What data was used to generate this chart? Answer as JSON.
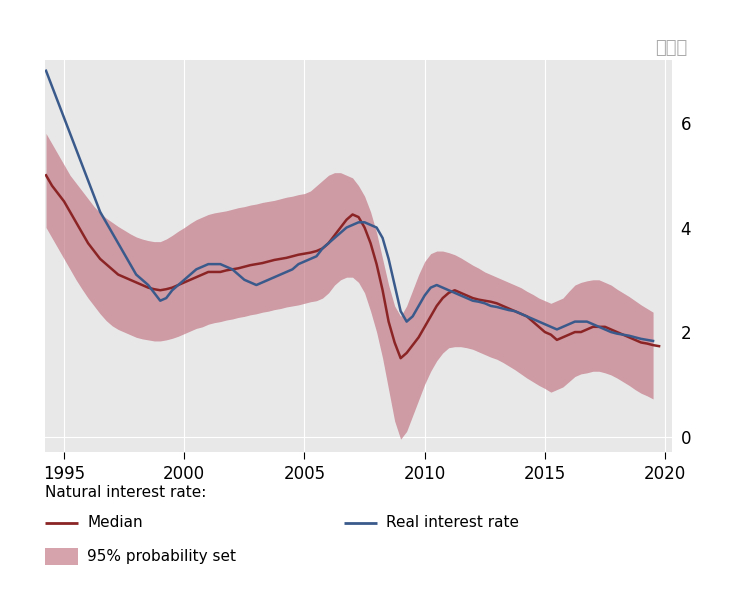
{
  "title_right": "百分比",
  "background_color": "#ffffff",
  "plot_bg_color": "#e8e8e8",
  "xlim": [
    1994.2,
    2020.3
  ],
  "ylim": [
    -0.3,
    7.2
  ],
  "yticks": [
    0,
    2,
    4,
    6
  ],
  "xticks": [
    1995,
    2000,
    2005,
    2010,
    2015,
    2020
  ],
  "median_color": "#8B2525",
  "real_color": "#3a5a8c",
  "band_color": "#c07080",
  "band_alpha": 0.65,
  "median_data": {
    "x": [
      1994.25,
      1994.5,
      1995.0,
      1995.25,
      1995.5,
      1995.75,
      1996.0,
      1996.25,
      1996.5,
      1996.75,
      1997.0,
      1997.25,
      1997.5,
      1997.75,
      1998.0,
      1998.25,
      1998.5,
      1998.75,
      1999.0,
      1999.25,
      1999.5,
      1999.75,
      2000.0,
      2000.25,
      2000.5,
      2000.75,
      2001.0,
      2001.25,
      2001.5,
      2001.75,
      2002.0,
      2002.25,
      2002.5,
      2002.75,
      2003.0,
      2003.25,
      2003.5,
      2003.75,
      2004.0,
      2004.25,
      2004.5,
      2004.75,
      2005.0,
      2005.25,
      2005.5,
      2005.75,
      2006.0,
      2006.25,
      2006.5,
      2006.75,
      2007.0,
      2007.25,
      2007.5,
      2007.75,
      2008.0,
      2008.25,
      2008.5,
      2008.75,
      2009.0,
      2009.25,
      2009.5,
      2009.75,
      2010.0,
      2010.25,
      2010.5,
      2010.75,
      2011.0,
      2011.25,
      2011.5,
      2011.75,
      2012.0,
      2012.25,
      2012.5,
      2012.75,
      2013.0,
      2013.25,
      2013.5,
      2013.75,
      2014.0,
      2014.25,
      2014.5,
      2014.75,
      2015.0,
      2015.25,
      2015.5,
      2015.75,
      2016.0,
      2016.25,
      2016.5,
      2016.75,
      2017.0,
      2017.25,
      2017.5,
      2017.75,
      2018.0,
      2018.25,
      2018.5,
      2018.75,
      2019.0,
      2019.25,
      2019.5,
      2019.75
    ],
    "y": [
      5.0,
      4.8,
      4.5,
      4.3,
      4.1,
      3.9,
      3.7,
      3.55,
      3.4,
      3.3,
      3.2,
      3.1,
      3.05,
      3.0,
      2.95,
      2.9,
      2.85,
      2.82,
      2.8,
      2.82,
      2.85,
      2.9,
      2.95,
      3.0,
      3.05,
      3.1,
      3.15,
      3.15,
      3.15,
      3.18,
      3.2,
      3.22,
      3.25,
      3.28,
      3.3,
      3.32,
      3.35,
      3.38,
      3.4,
      3.42,
      3.45,
      3.48,
      3.5,
      3.52,
      3.55,
      3.6,
      3.7,
      3.85,
      4.0,
      4.15,
      4.25,
      4.2,
      4.0,
      3.7,
      3.3,
      2.8,
      2.2,
      1.8,
      1.5,
      1.6,
      1.75,
      1.9,
      2.1,
      2.3,
      2.5,
      2.65,
      2.75,
      2.8,
      2.75,
      2.7,
      2.65,
      2.62,
      2.6,
      2.58,
      2.55,
      2.5,
      2.45,
      2.4,
      2.35,
      2.3,
      2.2,
      2.1,
      2.0,
      1.95,
      1.85,
      1.9,
      1.95,
      2.0,
      2.0,
      2.05,
      2.1,
      2.1,
      2.1,
      2.05,
      2.0,
      1.95,
      1.9,
      1.85,
      1.8,
      1.78,
      1.75,
      1.73
    ]
  },
  "real_data": {
    "x": [
      1994.25,
      1994.5,
      1994.75,
      1995.0,
      1995.25,
      1995.5,
      1995.75,
      1996.0,
      1996.25,
      1996.5,
      1996.75,
      1997.0,
      1997.25,
      1997.5,
      1997.75,
      1998.0,
      1998.25,
      1998.5,
      1998.75,
      1999.0,
      1999.25,
      1999.5,
      1999.75,
      2000.0,
      2000.25,
      2000.5,
      2000.75,
      2001.0,
      2001.25,
      2001.5,
      2001.75,
      2002.0,
      2002.25,
      2002.5,
      2002.75,
      2003.0,
      2003.25,
      2003.5,
      2003.75,
      2004.0,
      2004.25,
      2004.5,
      2004.75,
      2005.0,
      2005.25,
      2005.5,
      2005.75,
      2006.0,
      2006.25,
      2006.5,
      2006.75,
      2007.0,
      2007.25,
      2007.5,
      2007.75,
      2008.0,
      2008.25,
      2008.5,
      2008.75,
      2009.0,
      2009.25,
      2009.5,
      2009.75,
      2010.0,
      2010.25,
      2010.5,
      2010.75,
      2011.0,
      2011.25,
      2011.5,
      2011.75,
      2012.0,
      2012.25,
      2012.5,
      2012.75,
      2013.0,
      2013.25,
      2013.5,
      2013.75,
      2014.0,
      2014.25,
      2014.5,
      2014.75,
      2015.0,
      2015.25,
      2015.5,
      2015.75,
      2016.0,
      2016.25,
      2016.5,
      2016.75,
      2017.0,
      2017.25,
      2017.5,
      2017.75,
      2018.0,
      2018.25,
      2018.5,
      2018.75,
      2019.0,
      2019.25,
      2019.5
    ],
    "y": [
      7.0,
      6.7,
      6.4,
      6.1,
      5.8,
      5.5,
      5.2,
      4.9,
      4.6,
      4.3,
      4.1,
      3.9,
      3.7,
      3.5,
      3.3,
      3.1,
      3.0,
      2.9,
      2.75,
      2.6,
      2.65,
      2.8,
      2.9,
      3.0,
      3.1,
      3.2,
      3.25,
      3.3,
      3.3,
      3.3,
      3.25,
      3.2,
      3.1,
      3.0,
      2.95,
      2.9,
      2.95,
      3.0,
      3.05,
      3.1,
      3.15,
      3.2,
      3.3,
      3.35,
      3.4,
      3.45,
      3.6,
      3.7,
      3.8,
      3.9,
      4.0,
      4.05,
      4.1,
      4.1,
      4.05,
      4.0,
      3.8,
      3.4,
      2.9,
      2.4,
      2.2,
      2.3,
      2.5,
      2.7,
      2.85,
      2.9,
      2.85,
      2.8,
      2.75,
      2.7,
      2.65,
      2.6,
      2.58,
      2.55,
      2.5,
      2.48,
      2.45,
      2.42,
      2.4,
      2.35,
      2.3,
      2.25,
      2.2,
      2.15,
      2.1,
      2.05,
      2.1,
      2.15,
      2.2,
      2.2,
      2.2,
      2.15,
      2.1,
      2.05,
      2.0,
      1.97,
      1.95,
      1.93,
      1.9,
      1.87,
      1.85,
      1.83
    ]
  },
  "upper_band": {
    "x": [
      1994.25,
      1994.5,
      1994.75,
      1995.0,
      1995.25,
      1995.5,
      1995.75,
      1996.0,
      1996.25,
      1996.5,
      1996.75,
      1997.0,
      1997.25,
      1997.5,
      1997.75,
      1998.0,
      1998.25,
      1998.5,
      1998.75,
      1999.0,
      1999.25,
      1999.5,
      1999.75,
      2000.0,
      2000.25,
      2000.5,
      2000.75,
      2001.0,
      2001.25,
      2001.5,
      2001.75,
      2002.0,
      2002.25,
      2002.5,
      2002.75,
      2003.0,
      2003.25,
      2003.5,
      2003.75,
      2004.0,
      2004.25,
      2004.5,
      2004.75,
      2005.0,
      2005.25,
      2005.5,
      2005.75,
      2006.0,
      2006.25,
      2006.5,
      2006.75,
      2007.0,
      2007.25,
      2007.5,
      2007.75,
      2008.0,
      2008.25,
      2008.5,
      2008.75,
      2009.0,
      2009.25,
      2009.5,
      2009.75,
      2010.0,
      2010.25,
      2010.5,
      2010.75,
      2011.0,
      2011.25,
      2011.5,
      2011.75,
      2012.0,
      2012.25,
      2012.5,
      2012.75,
      2013.0,
      2013.25,
      2013.5,
      2013.75,
      2014.0,
      2014.25,
      2014.5,
      2014.75,
      2015.0,
      2015.25,
      2015.5,
      2015.75,
      2016.0,
      2016.25,
      2016.5,
      2016.75,
      2017.0,
      2017.25,
      2017.5,
      2017.75,
      2018.0,
      2018.25,
      2018.5,
      2018.75,
      2019.0,
      2019.25,
      2019.5
    ],
    "y": [
      5.8,
      5.6,
      5.4,
      5.2,
      5.0,
      4.85,
      4.7,
      4.55,
      4.4,
      4.28,
      4.18,
      4.1,
      4.02,
      3.95,
      3.88,
      3.82,
      3.78,
      3.75,
      3.73,
      3.73,
      3.78,
      3.85,
      3.93,
      4.0,
      4.08,
      4.15,
      4.2,
      4.25,
      4.28,
      4.3,
      4.32,
      4.35,
      4.38,
      4.4,
      4.43,
      4.45,
      4.48,
      4.5,
      4.52,
      4.55,
      4.58,
      4.6,
      4.63,
      4.65,
      4.7,
      4.8,
      4.9,
      5.0,
      5.05,
      5.05,
      5.0,
      4.95,
      4.8,
      4.6,
      4.3,
      3.9,
      3.4,
      2.9,
      2.5,
      2.3,
      2.5,
      2.8,
      3.1,
      3.35,
      3.5,
      3.55,
      3.55,
      3.52,
      3.48,
      3.42,
      3.35,
      3.28,
      3.22,
      3.15,
      3.1,
      3.05,
      3.0,
      2.95,
      2.9,
      2.85,
      2.78,
      2.72,
      2.65,
      2.6,
      2.55,
      2.6,
      2.65,
      2.78,
      2.9,
      2.95,
      2.98,
      3.0,
      3.0,
      2.95,
      2.9,
      2.82,
      2.75,
      2.68,
      2.6,
      2.52,
      2.45,
      2.38
    ]
  },
  "lower_band": {
    "x": [
      1994.25,
      1994.5,
      1994.75,
      1995.0,
      1995.25,
      1995.5,
      1995.75,
      1996.0,
      1996.25,
      1996.5,
      1996.75,
      1997.0,
      1997.25,
      1997.5,
      1997.75,
      1998.0,
      1998.25,
      1998.5,
      1998.75,
      1999.0,
      1999.25,
      1999.5,
      1999.75,
      2000.0,
      2000.25,
      2000.5,
      2000.75,
      2001.0,
      2001.25,
      2001.5,
      2001.75,
      2002.0,
      2002.25,
      2002.5,
      2002.75,
      2003.0,
      2003.25,
      2003.5,
      2003.75,
      2004.0,
      2004.25,
      2004.5,
      2004.75,
      2005.0,
      2005.25,
      2005.5,
      2005.75,
      2006.0,
      2006.25,
      2006.5,
      2006.75,
      2007.0,
      2007.25,
      2007.5,
      2007.75,
      2008.0,
      2008.25,
      2008.5,
      2008.75,
      2009.0,
      2009.25,
      2009.5,
      2009.75,
      2010.0,
      2010.25,
      2010.5,
      2010.75,
      2011.0,
      2011.25,
      2011.5,
      2011.75,
      2012.0,
      2012.25,
      2012.5,
      2012.75,
      2013.0,
      2013.25,
      2013.5,
      2013.75,
      2014.0,
      2014.25,
      2014.5,
      2014.75,
      2015.0,
      2015.25,
      2015.5,
      2015.75,
      2016.0,
      2016.25,
      2016.5,
      2016.75,
      2017.0,
      2017.25,
      2017.5,
      2017.75,
      2018.0,
      2018.25,
      2018.5,
      2018.75,
      2019.0,
      2019.25,
      2019.5
    ],
    "y": [
      4.0,
      3.8,
      3.6,
      3.4,
      3.2,
      3.0,
      2.82,
      2.65,
      2.5,
      2.35,
      2.22,
      2.12,
      2.05,
      2.0,
      1.95,
      1.9,
      1.87,
      1.85,
      1.83,
      1.83,
      1.85,
      1.88,
      1.92,
      1.97,
      2.02,
      2.07,
      2.1,
      2.15,
      2.18,
      2.2,
      2.23,
      2.25,
      2.28,
      2.3,
      2.33,
      2.35,
      2.38,
      2.4,
      2.43,
      2.45,
      2.48,
      2.5,
      2.52,
      2.55,
      2.58,
      2.6,
      2.65,
      2.75,
      2.9,
      3.0,
      3.05,
      3.05,
      2.95,
      2.75,
      2.4,
      2.0,
      1.5,
      0.9,
      0.3,
      -0.05,
      0.1,
      0.4,
      0.7,
      1.0,
      1.25,
      1.45,
      1.6,
      1.7,
      1.72,
      1.72,
      1.7,
      1.67,
      1.62,
      1.57,
      1.52,
      1.48,
      1.42,
      1.35,
      1.28,
      1.2,
      1.12,
      1.05,
      0.98,
      0.92,
      0.85,
      0.9,
      0.95,
      1.05,
      1.15,
      1.2,
      1.22,
      1.25,
      1.25,
      1.22,
      1.18,
      1.12,
      1.05,
      0.98,
      0.9,
      0.83,
      0.78,
      0.72
    ]
  },
  "legend_label_header": "Natural interest rate:",
  "legend_median": "Median",
  "legend_band": "95% probability set",
  "legend_real": "Real interest rate"
}
